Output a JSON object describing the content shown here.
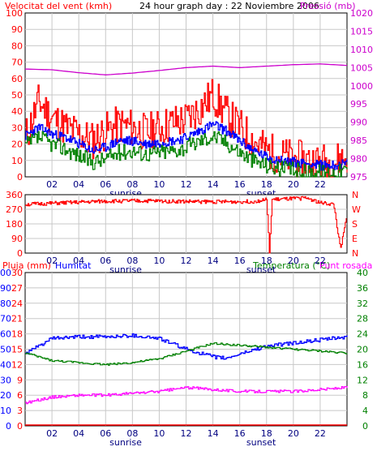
{
  "header": {
    "left": "Velocitat del vent (kmh)",
    "center": "24 hour graph day : 22 Noviembre 2006",
    "right": "Pressió (mb)"
  },
  "colors": {
    "wind": "#ff0000",
    "gust": "#ff0000",
    "avg": "#0000ff",
    "dir": "#ff0000",
    "temp": "#008000",
    "dew": "#ff00ff",
    "humidity": "#0000ff",
    "rain": "#ff0000",
    "pressure": "#cc00cc",
    "grid": "#c8c8c8"
  },
  "chart_data": [
    {
      "type": "line",
      "title": "24 hour graph day : 22 Noviembre 2006",
      "left_axis_label": "Velocitat del vent (kmh)",
      "right_axis_label": "Pressió (mb)",
      "x_ticks": [
        "02",
        "04",
        "06",
        "08",
        "10",
        "12",
        "14",
        "16",
        "18",
        "20",
        "22"
      ],
      "x_markers": [
        {
          "label": "sunrise",
          "hour": 7.5
        },
        {
          "label": "sunset",
          "hour": 17.6
        }
      ],
      "ylim_left": [
        0,
        100
      ],
      "yticks_left": [
        "0",
        "10",
        "20",
        "30",
        "40",
        "50",
        "60",
        "70",
        "80",
        "90",
        "100"
      ],
      "ylim_right": [
        975,
        1020
      ],
      "yticks_right": [
        "975",
        "980",
        "985",
        "990",
        "995",
        "1000",
        "1005",
        "1010",
        "1015",
        "1020"
      ],
      "series": [
        {
          "key": "gust",
          "axis": "left",
          "anchors": [
            [
              0,
              24
            ],
            [
              1,
              46
            ],
            [
              2,
              36
            ],
            [
              3,
              30
            ],
            [
              4,
              26
            ],
            [
              5,
              22
            ],
            [
              6,
              28
            ],
            [
              7,
              32
            ],
            [
              8,
              30
            ],
            [
              9,
              27
            ],
            [
              10,
              30
            ],
            [
              11,
              33
            ],
            [
              12,
              35
            ],
            [
              13,
              42
            ],
            [
              14,
              50
            ],
            [
              15,
              38
            ],
            [
              16,
              30
            ],
            [
              17,
              22
            ],
            [
              18,
              16
            ],
            [
              19,
              13
            ],
            [
              20,
              11
            ],
            [
              21,
              10
            ],
            [
              22,
              9
            ],
            [
              23,
              9
            ],
            [
              24,
              12
            ]
          ]
        },
        {
          "key": "avg",
          "axis": "left",
          "anchors": [
            [
              0,
              25
            ],
            [
              1,
              30
            ],
            [
              2,
              26
            ],
            [
              3,
              24
            ],
            [
              4,
              20
            ],
            [
              5,
              16
            ],
            [
              6,
              18
            ],
            [
              7,
              22
            ],
            [
              8,
              22
            ],
            [
              9,
              20
            ],
            [
              10,
              21
            ],
            [
              11,
              22
            ],
            [
              12,
              24
            ],
            [
              13,
              28
            ],
            [
              14,
              32
            ],
            [
              15,
              28
            ],
            [
              16,
              22
            ],
            [
              17,
              16
            ],
            [
              18,
              12
            ],
            [
              19,
              10
            ],
            [
              20,
              9
            ],
            [
              21,
              8
            ],
            [
              22,
              7
            ],
            [
              23,
              7
            ],
            [
              24,
              8
            ]
          ]
        },
        {
          "key": "wind",
          "axis": "left",
          "anchors": [
            [
              0,
              19
            ],
            [
              1,
              24
            ],
            [
              2,
              20
            ],
            [
              3,
              17
            ],
            [
              4,
              13
            ],
            [
              5,
              9
            ],
            [
              6,
              11
            ],
            [
              7,
              15
            ],
            [
              8,
              16
            ],
            [
              9,
              14
            ],
            [
              10,
              15
            ],
            [
              11,
              16
            ],
            [
              12,
              18
            ],
            [
              13,
              22
            ],
            [
              14,
              25
            ],
            [
              15,
              21
            ],
            [
              16,
              15
            ],
            [
              17,
              10
            ],
            [
              18,
              7
            ],
            [
              19,
              5
            ],
            [
              20,
              4
            ],
            [
              21,
              3
            ],
            [
              22,
              3
            ],
            [
              23,
              3
            ],
            [
              24,
              4
            ]
          ]
        },
        {
          "key": "pressure",
          "axis": "right",
          "anchors": [
            [
              0,
              1004.6
            ],
            [
              2,
              1004.4
            ],
            [
              4,
              1003.6
            ],
            [
              6,
              1003.0
            ],
            [
              8,
              1003.5
            ],
            [
              10,
              1004.2
            ],
            [
              12,
              1005.0
            ],
            [
              14,
              1005.4
            ],
            [
              16,
              1005.0
            ],
            [
              18,
              1005.4
            ],
            [
              20,
              1005.8
            ],
            [
              22,
              1006.0
            ],
            [
              24,
              1005.6
            ]
          ]
        }
      ]
    },
    {
      "type": "line",
      "title": "",
      "left_axis_label": "",
      "right_axis_label": "",
      "x_ticks": [
        "02",
        "04",
        "06",
        "08",
        "10",
        "12",
        "14",
        "16",
        "18",
        "20",
        "22"
      ],
      "x_markers": [
        {
          "label": "sunrise",
          "hour": 7.5
        },
        {
          "label": "sunset",
          "hour": 17.6
        }
      ],
      "ylim_left": [
        0,
        360
      ],
      "yticks_left": [
        "0",
        "90",
        "180",
        "270",
        "360"
      ],
      "yticks_right": [
        "N",
        "E",
        "S",
        "W",
        "N"
      ],
      "series": [
        {
          "key": "dir",
          "axis": "left",
          "anchors": [
            [
              0,
              300
            ],
            [
              3,
              310
            ],
            [
              6,
              320
            ],
            [
              9,
              322
            ],
            [
              12,
              318
            ],
            [
              15,
              316
            ],
            [
              17,
              318
            ],
            [
              18,
              330
            ],
            [
              18.2,
              0
            ],
            [
              18.4,
              330
            ],
            [
              20,
              335
            ],
            [
              21,
              340
            ],
            [
              22,
              310
            ],
            [
              23,
              300
            ],
            [
              23.5,
              20
            ],
            [
              24,
              240
            ]
          ]
        }
      ]
    },
    {
      "type": "line",
      "title": "",
      "left_axis_labels": [
        "Pluja (mm)",
        "Humitat"
      ],
      "right_axis_labels": [
        "Temperatura (°C)",
        "Punt rosada"
      ],
      "x_ticks": [
        "02",
        "04",
        "06",
        "08",
        "10",
        "12",
        "14",
        "16",
        "18",
        "20",
        "22"
      ],
      "x_markers": [
        {
          "label": "sunrise",
          "hour": 7.5
        },
        {
          "label": "sunset",
          "hour": 17.6
        }
      ],
      "ylim_rain": [
        0,
        30
      ],
      "yticks_rain": [
        "0",
        "3",
        "6",
        "9",
        "12",
        "15",
        "18",
        "21",
        "24",
        "27",
        "30"
      ],
      "ylim_hum": [
        0,
        100
      ],
      "yticks_hum": [
        "0",
        "10",
        "20",
        "30",
        "40",
        "50",
        "60",
        "70",
        "80",
        "90",
        "100"
      ],
      "ylim_temp": [
        0,
        40
      ],
      "yticks_temp": [
        "0",
        "4",
        "8",
        "12",
        "16",
        "20",
        "24",
        "28",
        "32",
        "36",
        "40"
      ],
      "series": [
        {
          "key": "humidity",
          "axis": "hum",
          "anchors": [
            [
              0,
              47
            ],
            [
              2,
              57
            ],
            [
              4,
              58
            ],
            [
              6,
              58
            ],
            [
              8,
              59
            ],
            [
              10,
              57
            ],
            [
              12,
              50
            ],
            [
              14,
              45
            ],
            [
              15,
              44
            ],
            [
              16,
              47
            ],
            [
              18,
              52
            ],
            [
              20,
              54
            ],
            [
              22,
              56
            ],
            [
              24,
              58
            ]
          ]
        },
        {
          "key": "temp",
          "axis": "temp",
          "anchors": [
            [
              0,
              19
            ],
            [
              2,
              17
            ],
            [
              4,
              16.5
            ],
            [
              6,
              16
            ],
            [
              8,
              16.5
            ],
            [
              10,
              17.5
            ],
            [
              12,
              19.5
            ],
            [
              14,
              21.5
            ],
            [
              16,
              21
            ],
            [
              18,
              20.5
            ],
            [
              20,
              20
            ],
            [
              22,
              19.5
            ],
            [
              24,
              19
            ]
          ]
        },
        {
          "key": "dew",
          "axis": "temp",
          "anchors": [
            [
              0,
              6
            ],
            [
              2,
              7.5
            ],
            [
              4,
              8
            ],
            [
              6,
              8
            ],
            [
              8,
              8.5
            ],
            [
              10,
              9
            ],
            [
              12,
              10
            ],
            [
              14,
              9.5
            ],
            [
              16,
              9
            ],
            [
              18,
              9
            ],
            [
              20,
              9
            ],
            [
              22,
              9.5
            ],
            [
              24,
              10
            ]
          ]
        },
        {
          "key": "rain",
          "axis": "rain",
          "anchors": [
            [
              0,
              0
            ],
            [
              24,
              0
            ]
          ]
        }
      ]
    }
  ]
}
